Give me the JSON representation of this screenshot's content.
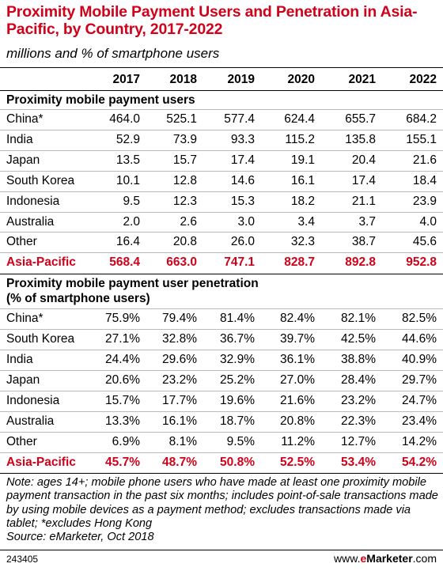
{
  "chart_data": {
    "type": "table",
    "title": "Proximity Mobile Payment Users and Penetration in Asia-Pacific, by Country, 2017-2022",
    "subtitle": "millions and % of smartphone users",
    "columns": [
      "2017",
      "2018",
      "2019",
      "2020",
      "2021",
      "2022"
    ],
    "sections": [
      {
        "title": "Proximity mobile payment users",
        "rows": [
          {
            "label": "China*",
            "values": [
              "464.0",
              "525.1",
              "577.4",
              "624.4",
              "655.7",
              "684.2"
            ]
          },
          {
            "label": "India",
            "values": [
              "52.9",
              "73.9",
              "93.3",
              "115.2",
              "135.8",
              "155.1"
            ]
          },
          {
            "label": "Japan",
            "values": [
              "13.5",
              "15.7",
              "17.4",
              "19.1",
              "20.4",
              "21.6"
            ]
          },
          {
            "label": "South Korea",
            "values": [
              "10.1",
              "12.8",
              "14.6",
              "16.1",
              "17.4",
              "18.4"
            ]
          },
          {
            "label": "Indonesia",
            "values": [
              "9.5",
              "12.3",
              "15.3",
              "18.2",
              "21.1",
              "23.9"
            ]
          },
          {
            "label": "Australia",
            "values": [
              "2.0",
              "2.6",
              "3.0",
              "3.4",
              "3.7",
              "4.0"
            ]
          },
          {
            "label": "Other",
            "values": [
              "16.4",
              "20.8",
              "26.0",
              "32.3",
              "38.7",
              "45.6"
            ]
          }
        ],
        "total": {
          "label": "Asia-Pacific",
          "values": [
            "568.4",
            "663.0",
            "747.1",
            "828.7",
            "892.8",
            "952.8"
          ]
        }
      },
      {
        "title": "Proximity mobile payment user penetration",
        "title2": "(% of smartphone users)",
        "rows": [
          {
            "label": "China*",
            "values": [
              "75.9%",
              "79.4%",
              "81.4%",
              "82.4%",
              "82.1%",
              "82.5%"
            ]
          },
          {
            "label": "South Korea",
            "values": [
              "27.1%",
              "32.8%",
              "36.7%",
              "39.7%",
              "42.5%",
              "44.6%"
            ]
          },
          {
            "label": "India",
            "values": [
              "24.4%",
              "29.6%",
              "32.9%",
              "36.1%",
              "38.8%",
              "40.9%"
            ]
          },
          {
            "label": "Japan",
            "values": [
              "20.6%",
              "23.2%",
              "25.2%",
              "27.0%",
              "28.4%",
              "29.7%"
            ]
          },
          {
            "label": "Indonesia",
            "values": [
              "15.7%",
              "17.7%",
              "19.6%",
              "21.6%",
              "23.2%",
              "24.7%"
            ]
          },
          {
            "label": "Australia",
            "values": [
              "13.3%",
              "16.1%",
              "18.7%",
              "20.8%",
              "22.3%",
              "23.4%"
            ]
          },
          {
            "label": "Other",
            "values": [
              "6.9%",
              "8.1%",
              "9.5%",
              "11.2%",
              "12.7%",
              "14.2%"
            ]
          }
        ],
        "total": {
          "label": "Asia-Pacific",
          "values": [
            "45.7%",
            "48.7%",
            "50.8%",
            "52.5%",
            "53.4%",
            "54.2%"
          ]
        }
      }
    ],
    "note": "Note: ages 14+; mobile phone users who have made at least one proximity mobile payment transaction in the past six months; includes point-of-sale transactions made by using mobile devices as a payment method; excludes transactions made via tablet; *excludes Hong Kong",
    "source": "Source: eMarketer, Oct 2018"
  },
  "footer": {
    "chart_id": "243405",
    "logo_prefix": "www.",
    "logo_e": "e",
    "logo_brand": "Marketer",
    "logo_suffix": ".com"
  },
  "colors": {
    "accent": "#d0021b",
    "rule": "#000000",
    "thin_rule": "#bbbbbb"
  }
}
